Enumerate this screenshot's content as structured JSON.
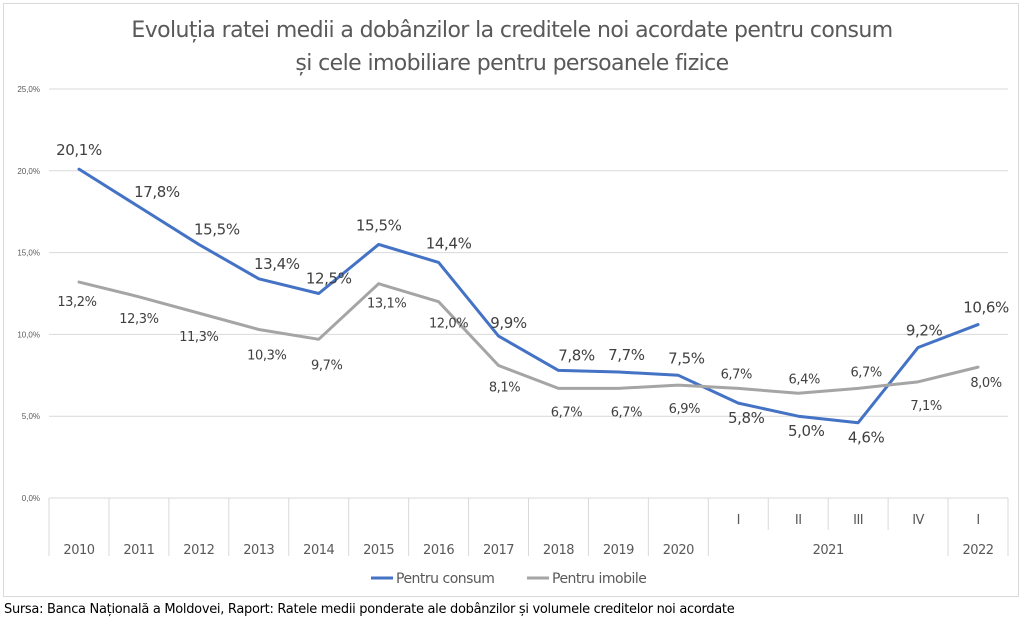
{
  "chart_data": {
    "type": "line",
    "title": "Evoluția ratei medii a dobânzilor la creditele noi acordate pentru consum",
    "subtitle": "și cele imobiliare pentru persoanele fizice",
    "xlabel": "",
    "ylabel": "",
    "ylim": [
      0,
      25
    ],
    "yticks": [
      "0,0%",
      "5,0%",
      "10,0%",
      "15,0%",
      "20,0%",
      "25,0%"
    ],
    "ytick_values": [
      0,
      5,
      10,
      15,
      20,
      25
    ],
    "grid": true,
    "categories": [
      "2010",
      "2011",
      "2012",
      "2013",
      "2014",
      "2015",
      "2016",
      "2017",
      "2018",
      "2019",
      "2020",
      "I",
      "II",
      "III",
      "IV",
      "I"
    ],
    "category_groups": [
      {
        "label": "2010",
        "span": 1
      },
      {
        "label": "2011",
        "span": 1
      },
      {
        "label": "2012",
        "span": 1
      },
      {
        "label": "2013",
        "span": 1
      },
      {
        "label": "2014",
        "span": 1
      },
      {
        "label": "2015",
        "span": 1
      },
      {
        "label": "2016",
        "span": 1
      },
      {
        "label": "2017",
        "span": 1
      },
      {
        "label": "2018",
        "span": 1
      },
      {
        "label": "2019",
        "span": 1
      },
      {
        "label": "2020",
        "span": 1
      },
      {
        "label": "2021",
        "span": 4
      },
      {
        "label": "2022",
        "span": 1
      }
    ],
    "series": [
      {
        "name": "Pentru consum",
        "color": "#4472c4",
        "values": [
          20.1,
          17.8,
          15.5,
          13.4,
          12.5,
          15.5,
          14.4,
          9.9,
          7.8,
          7.7,
          7.5,
          5.8,
          5.0,
          4.6,
          9.2,
          10.6
        ],
        "labels": [
          "20,1%",
          "17,8%",
          "15,5%",
          "13,4%",
          "12,5%",
          "15,5%",
          "14,4%",
          "9,9%",
          "7,8%",
          "7,7%",
          "7,5%",
          "5,8%",
          "5,0%",
          "4,6%",
          "9,2%",
          "10,6%"
        ]
      },
      {
        "name": "Pentru imobile",
        "color": "#a5a5a5",
        "values": [
          13.2,
          12.3,
          11.3,
          10.3,
          9.7,
          13.1,
          12.0,
          8.1,
          6.7,
          6.7,
          6.9,
          6.7,
          6.4,
          6.7,
          7.1,
          8.0
        ],
        "labels": [
          "13,2%",
          "12,3%",
          "11,3%",
          "10,3%",
          "9,7%",
          "13,1%",
          "12,0%",
          "8,1%",
          "6,7%",
          "6,7%",
          "6,9%",
          "6,7%",
          "6,4%",
          "6,7%",
          "7,1%",
          "8,0%"
        ]
      }
    ],
    "legend": "bottom"
  },
  "source": "Sursa: Banca Națională a Moldovei, Raport: Ratele medii ponderate ale dobânzilor și volumele creditelor noi acordate"
}
